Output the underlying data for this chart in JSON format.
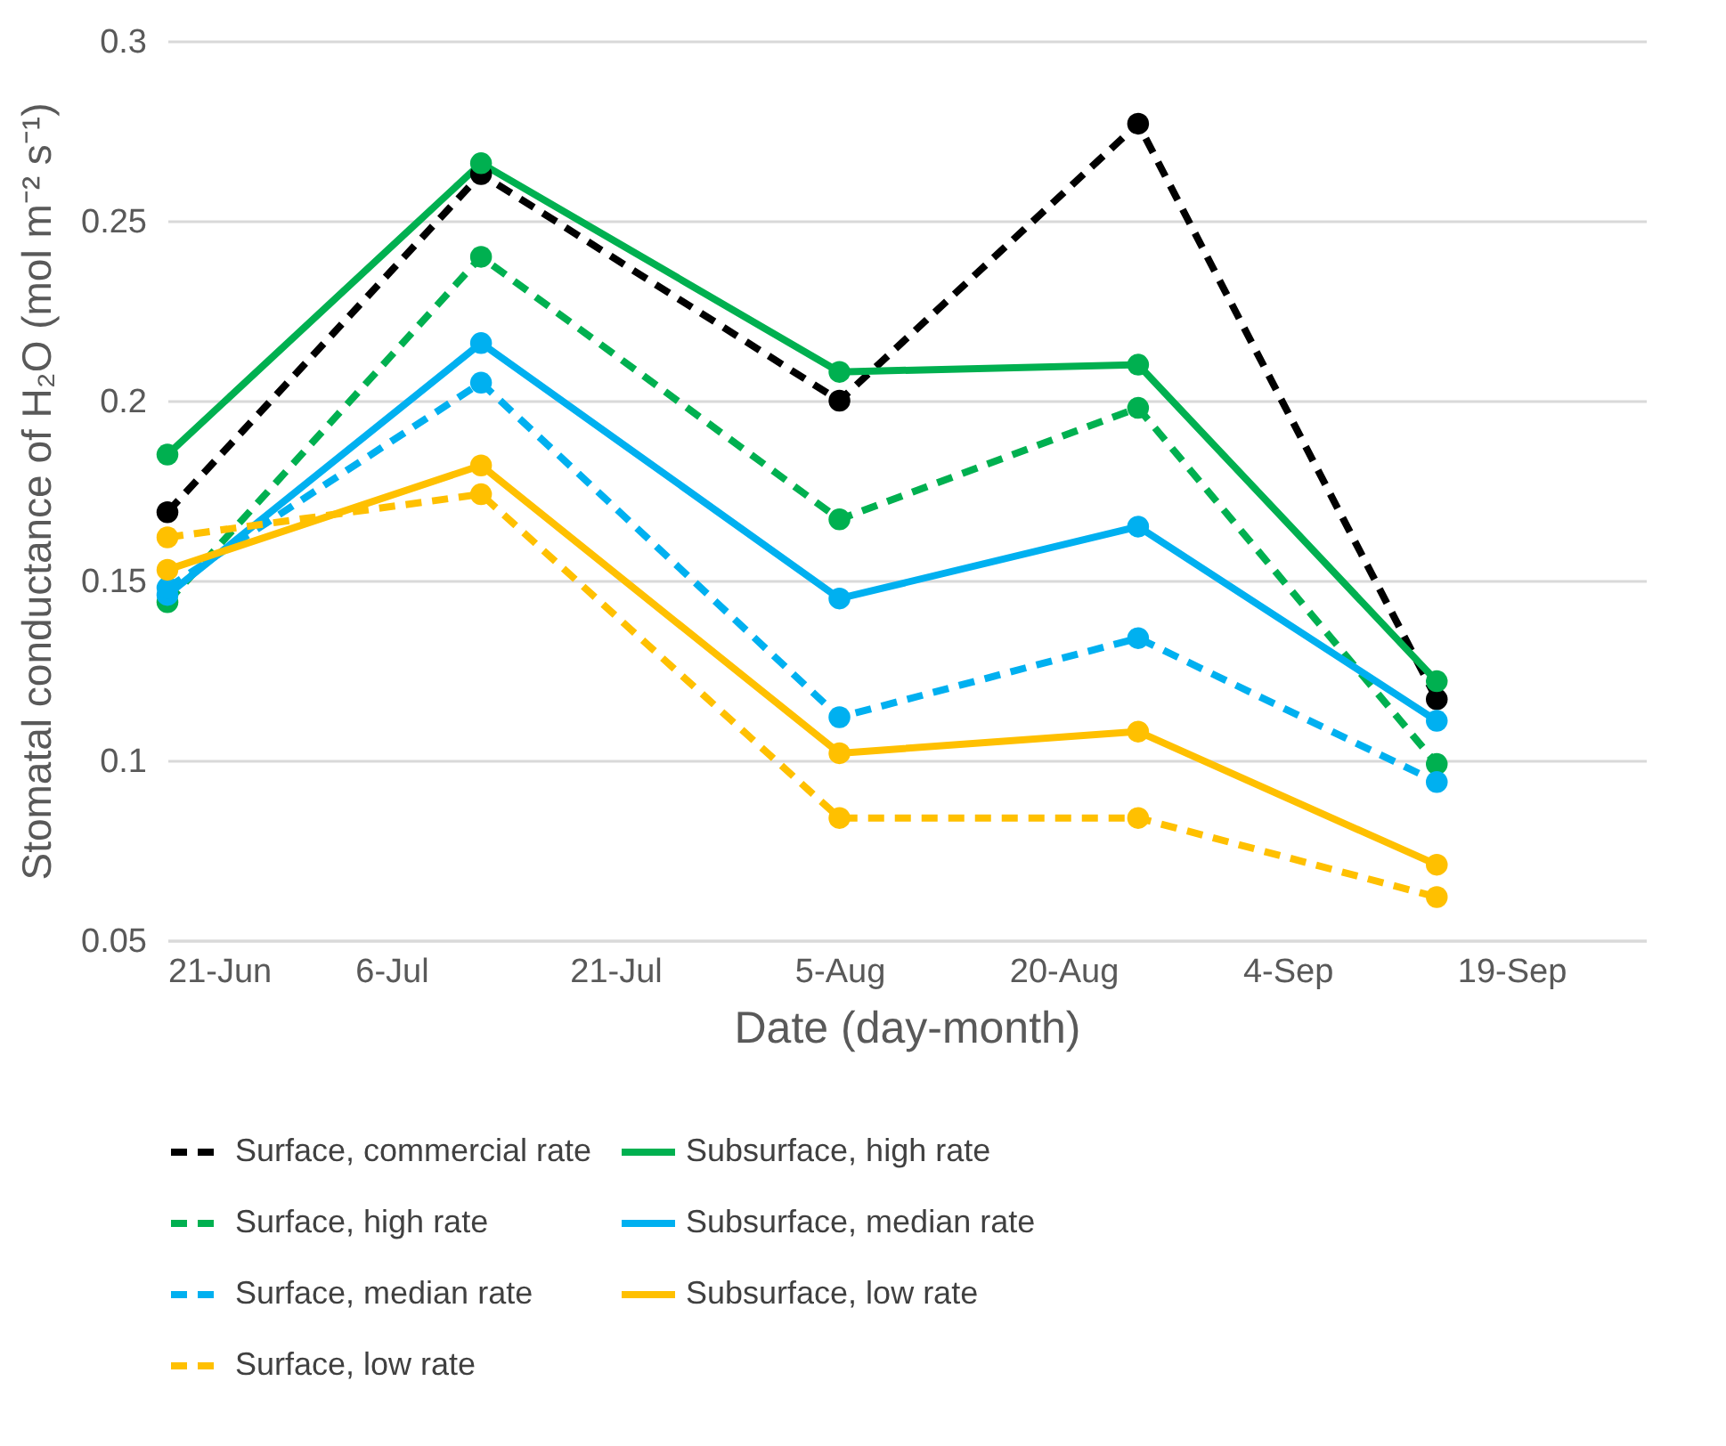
{
  "chart_data": {
    "type": "line",
    "xlabel": "Date (day-month)",
    "ylabel": "Stomatal conductance of H₂O (mol m⁻² s⁻¹)",
    "x": [
      "--06-21",
      "--07-12",
      "--08-05",
      "--08-25",
      "--09-14"
    ],
    "series": [
      {
        "name": "Surface, commercial rate",
        "color": "#000000",
        "line_style": "dashed",
        "values": [
          0.169,
          0.263,
          0.2,
          0.277,
          0.117
        ]
      },
      {
        "name": "Subsurface, high rate",
        "color": "#00b050",
        "line_style": "solid",
        "values": [
          0.185,
          0.266,
          0.208,
          0.21,
          0.122
        ]
      },
      {
        "name": "Surface, high rate",
        "color": "#00b050",
        "line_style": "dashed",
        "values": [
          0.144,
          0.24,
          0.167,
          0.198,
          0.099
        ]
      },
      {
        "name": "Subsurface, median rate",
        "color": "#00b0f0",
        "line_style": "solid",
        "values": [
          0.146,
          0.216,
          0.145,
          0.165,
          0.111
        ]
      },
      {
        "name": "Surface, median rate",
        "color": "#00b0f0",
        "line_style": "dashed",
        "values": [
          0.148,
          0.205,
          0.112,
          0.134,
          0.094
        ]
      },
      {
        "name": "Subsurface, low rate",
        "color": "#ffc000",
        "line_style": "solid",
        "values": [
          0.153,
          0.182,
          0.102,
          0.108,
          0.071
        ]
      },
      {
        "name": "Surface, low rate",
        "color": "#ffc000",
        "line_style": "dashed",
        "values": [
          0.162,
          0.174,
          0.084,
          0.084,
          0.062
        ]
      }
    ],
    "xlim": [
      "--06-21",
      "--09-28"
    ],
    "xticks": [
      {
        "value": "--06-21",
        "label": "21-Jun"
      },
      {
        "value": "--07-06",
        "label": "6-Jul"
      },
      {
        "value": "--07-21",
        "label": "21-Jul"
      },
      {
        "value": "--08-05",
        "label": "5-Aug"
      },
      {
        "value": "--08-20",
        "label": "20-Aug"
      },
      {
        "value": "--09-04",
        "label": "4-Sep"
      },
      {
        "value": "--09-19",
        "label": "19-Sep"
      }
    ],
    "ylim": [
      0.05,
      0.3
    ],
    "yticks": [
      0.05,
      0.1,
      0.15,
      0.2,
      0.25,
      0.3
    ],
    "grid": "y",
    "legend": "bottom",
    "marker": "circle"
  }
}
